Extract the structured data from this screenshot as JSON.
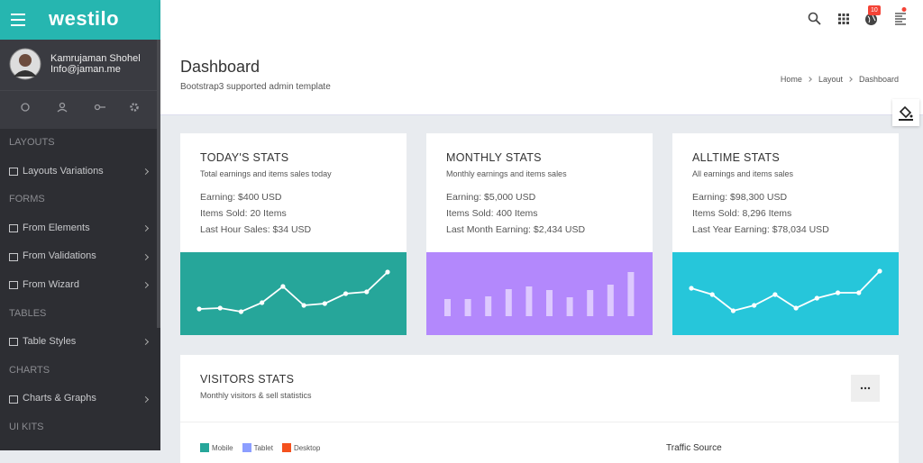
{
  "header": {
    "logo": "westilo",
    "notifications": "10"
  },
  "user": {
    "name": "Kamrujaman Shohel",
    "email": "Info@jaman.me"
  },
  "sidebar": {
    "sections": [
      {
        "title": "LAYOUTS",
        "items": [
          "Layouts Variations"
        ]
      },
      {
        "title": "FORMS",
        "items": [
          "From Elements",
          "From Validations",
          "From Wizard"
        ]
      },
      {
        "title": "TABLES",
        "items": [
          "Table Styles"
        ]
      },
      {
        "title": "CHARTS",
        "items": [
          "Charts & Graphs"
        ]
      },
      {
        "title": "UI KITS",
        "items": []
      }
    ]
  },
  "page": {
    "title": "Dashboard",
    "subtitle": "Bootstrap3 supported admin template",
    "breadcrumb": [
      "Home",
      "Layout",
      "Dashboard"
    ]
  },
  "cards": [
    {
      "title": "TODAY'S STATS",
      "subtitle": "Total earnings and items sales today",
      "lines": [
        "Earning: $400 USD",
        "Items Sold: 20 Items",
        "Last Hour Sales: $34 USD"
      ],
      "chart": {
        "type": "line",
        "color": "#26a69a",
        "values": [
          29,
          30,
          26,
          36,
          54,
          33,
          35,
          46,
          48,
          70
        ]
      }
    },
    {
      "title": "MONTHLY STATS",
      "subtitle": "Monthly earnings and items sales",
      "lines": [
        "Earning: $5,000 USD",
        "Items Sold: 400 Items",
        "Last Month Earning: $2,434 USD"
      ],
      "chart": {
        "type": "bar",
        "color": "#b388fc",
        "values": [
          19,
          19,
          22,
          30,
          33,
          29,
          21,
          29,
          35,
          49
        ]
      }
    },
    {
      "title": "ALLTIME STATS",
      "subtitle": "All earnings and items sales",
      "lines": [
        "Earning: $98,300 USD",
        "Items Sold: 8,296 Items",
        "Last Year Earning: $78,034 USD"
      ],
      "chart": {
        "type": "line",
        "color": "#26c6da",
        "values": [
          52,
          45,
          27,
          33,
          45,
          30,
          41,
          47,
          47,
          71
        ]
      }
    }
  ],
  "visitors": {
    "title": "VISITORS STATS",
    "subtitle": "Monthly visitors & sell statistics",
    "legend": [
      {
        "name": "Mobile",
        "color": "#26a69a"
      },
      {
        "name": "Tablet",
        "color": "#8c9eff"
      },
      {
        "name": "Desktop",
        "color": "#f4511e"
      }
    ],
    "traffic": "Traffic Source"
  }
}
